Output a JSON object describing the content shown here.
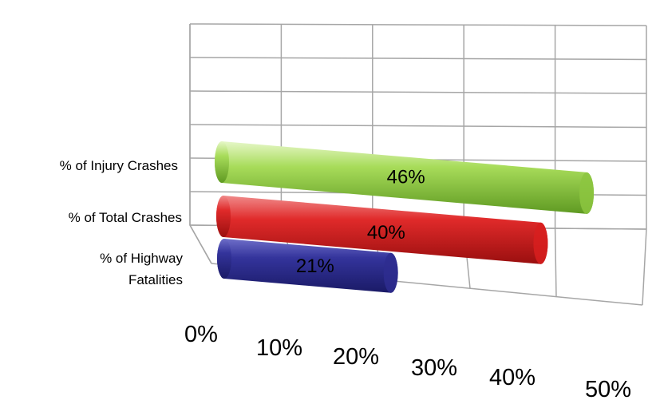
{
  "chart_data": {
    "type": "bar",
    "orientation": "horizontal",
    "style": "3d-cylinder",
    "categories": [
      "% of Injury Crashes",
      "% of Total Crashes",
      "% of Highway Fatalities"
    ],
    "category_label_lines": [
      [
        "% of Injury Crashes"
      ],
      [
        "% of Total Crashes"
      ],
      [
        "% of Highway",
        "Fatalities"
      ]
    ],
    "values": [
      46,
      40,
      21
    ],
    "data_labels": [
      "46%",
      "40%",
      "21%"
    ],
    "colors": [
      "#8cc63f",
      "#d81e1e",
      "#2e2d8f"
    ],
    "x_ticks": [
      "0%",
      "10%",
      "20%",
      "30%",
      "40%",
      "50%"
    ],
    "xlim": [
      0,
      50
    ],
    "grid": true,
    "legend": "none",
    "title": "",
    "xlabel": "",
    "ylabel": ""
  }
}
